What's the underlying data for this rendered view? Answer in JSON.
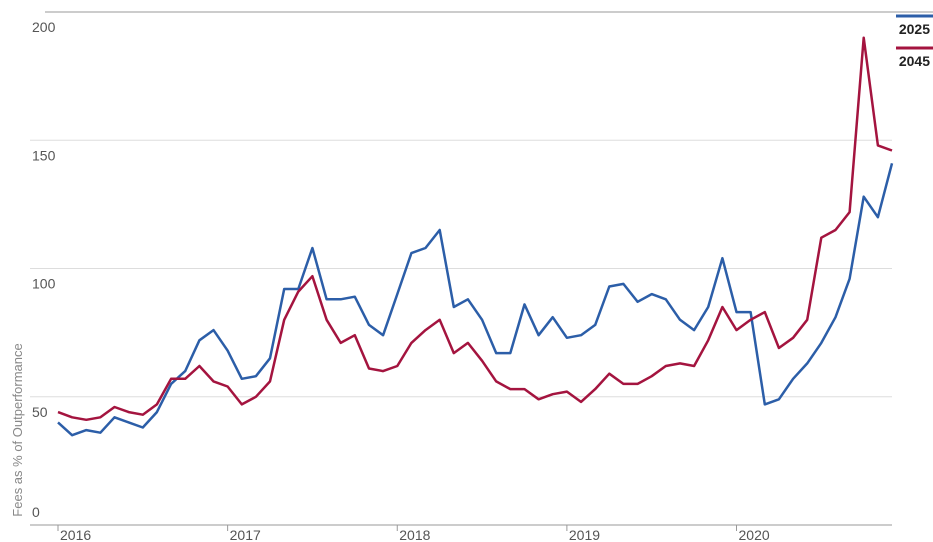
{
  "chart_data": {
    "type": "line",
    "y_label": "Fees as % of Outperformance",
    "categories": [
      "2016",
      null,
      null,
      null,
      null,
      null,
      null,
      null,
      null,
      null,
      null,
      null,
      "2017",
      null,
      null,
      null,
      null,
      null,
      null,
      null,
      null,
      null,
      null,
      null,
      "2018",
      null,
      null,
      null,
      null,
      null,
      null,
      null,
      null,
      null,
      null,
      null,
      "2019",
      null,
      null,
      null,
      null,
      null,
      null,
      null,
      null,
      null,
      null,
      null,
      "2020",
      null,
      null,
      null,
      null,
      null,
      null,
      null,
      null,
      null,
      null,
      null
    ],
    "series": [
      {
        "name": "2025",
        "color": "#2c5ea8",
        "values": [
          40,
          35,
          37,
          36,
          42,
          40,
          38,
          44,
          55,
          60,
          72,
          76,
          68,
          57,
          58,
          65,
          92,
          92,
          108,
          88,
          88,
          89,
          78,
          74,
          90,
          106,
          108,
          115,
          85,
          88,
          80,
          67,
          67,
          86,
          74,
          81,
          73,
          74,
          78,
          93,
          94,
          87,
          90,
          88,
          80,
          76,
          85,
          104,
          83,
          83,
          47,
          49,
          57,
          63,
          71,
          81,
          96,
          128,
          120,
          141
        ]
      },
      {
        "name": "2045",
        "color": "#a4143f",
        "values": [
          44,
          42,
          41,
          42,
          46,
          44,
          43,
          47,
          57,
          57,
          62,
          56,
          54,
          47,
          50,
          56,
          80,
          91,
          97,
          80,
          71,
          74,
          61,
          60,
          62,
          71,
          76,
          80,
          67,
          71,
          64,
          56,
          53,
          53,
          49,
          51,
          52,
          48,
          53,
          59,
          55,
          55,
          58,
          62,
          63,
          62,
          72,
          85,
          76,
          80,
          83,
          69,
          73,
          80,
          112,
          115,
          122,
          190,
          148,
          146
        ]
      }
    ],
    "ylim": [
      0,
      200
    ],
    "yticks": [
      0,
      50,
      100,
      150,
      200
    ],
    "grid": true,
    "legend": "top-right"
  }
}
